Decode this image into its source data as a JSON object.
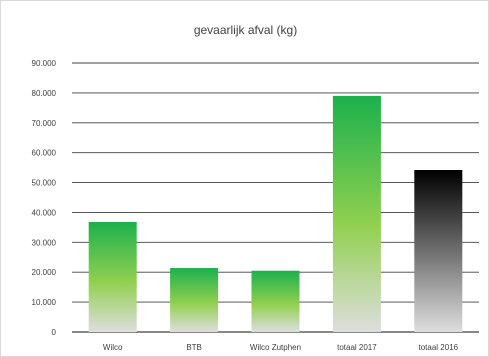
{
  "chart_data": {
    "type": "bar",
    "title": "gevaarlijk afval (kg)",
    "categories": [
      "Wilco",
      "BTB",
      "Wilco Zutphen",
      "totaal 2017",
      "totaal 2016"
    ],
    "values": [
      36800,
      21400,
      20500,
      79000,
      54200
    ],
    "ylim": [
      0,
      90000
    ],
    "yticks": [
      0,
      10000,
      20000,
      30000,
      40000,
      50000,
      60000,
      70000,
      80000,
      90000
    ],
    "ytick_labels": [
      "0",
      "10.000",
      "20.000",
      "30.000",
      "40.000",
      "50.000",
      "60.000",
      "70.000",
      "80.000",
      "90.000"
    ],
    "xlabel": "",
    "ylabel": "",
    "grid": true,
    "legend": "none",
    "colors": {
      "green_top": "#1cb14c",
      "green_mid": "#92d050",
      "green_bottom": "#dedede",
      "black_top": "#000000",
      "black_bottom": "#dedede",
      "axis": "#404040",
      "grid": "#404040"
    },
    "bar_fill": [
      "green",
      "green",
      "green",
      "green",
      "black"
    ]
  }
}
